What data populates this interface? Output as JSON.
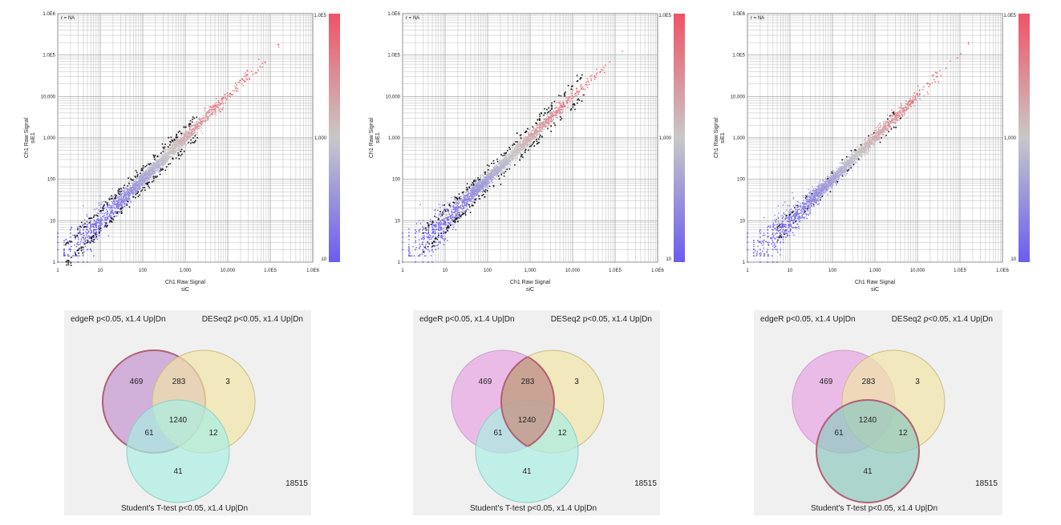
{
  "chart_data": [
    {
      "type": "scatter",
      "corr_label": "r = NA",
      "xlabel": "Ch1 Raw Signal",
      "xsub": "siC",
      "ylabel": "Ch1 Raw Signal",
      "ysub": "siE1",
      "scale": "log",
      "xlim": [
        1,
        1000000
      ],
      "ylim": [
        1,
        1000000
      ],
      "x_ticks": [
        "1",
        "10",
        "100",
        "1,000",
        "10,000",
        "1.0E5",
        "1.0E6"
      ],
      "y_ticks": [
        "1",
        "10",
        "100",
        "1,000",
        "10,000",
        "1.0E5",
        "1.0E6"
      ],
      "colorbar": {
        "labels": [
          "1.0E5",
          "1,000",
          "10"
        ],
        "low_color": "#6b5cf0",
        "mid_color": "#c8c8c8",
        "high_color": "#ef5366"
      },
      "highlight_color": "#111111",
      "highlight_side": "both",
      "highlight_range": [
        1.5,
        2000
      ],
      "grid": true
    },
    {
      "type": "scatter",
      "corr_label": "r = NA",
      "xlabel": "Ch1 Raw Signal",
      "xsub": "siC",
      "ylabel": "Ch1 Raw Signal",
      "ysub": "siE1",
      "scale": "log",
      "xlim": [
        1,
        1000000
      ],
      "ylim": [
        1,
        1000000
      ],
      "x_ticks": [
        "1",
        "10",
        "100",
        "1,000",
        "10,000",
        "1.0E5",
        "1.0E6"
      ],
      "y_ticks": [
        "1",
        "10",
        "100",
        "1,000",
        "10,000",
        "1.0E5",
        "1.0E6"
      ],
      "colorbar": {
        "labels": [
          "1.0E5",
          "1,000",
          "10"
        ],
        "low_color": "#6b5cf0",
        "mid_color": "#c8c8c8",
        "high_color": "#ef5366"
      },
      "highlight_color": "#111111",
      "highlight_side": "both",
      "highlight_range": [
        3,
        20000
      ],
      "grid": true
    },
    {
      "type": "scatter",
      "corr_label": "r = NA",
      "xlabel": "Ch1 Raw Signal",
      "xsub": "siC",
      "ylabel": "Ch1 Raw Signal",
      "ysub": "siE1",
      "scale": "log",
      "xlim": [
        1,
        1000000
      ],
      "ylim": [
        1,
        1000000
      ],
      "x_ticks": [
        "1",
        "10",
        "100",
        "1,000",
        "10,000",
        "1.0E5",
        "1.0E6"
      ],
      "y_ticks": [
        "1",
        "10",
        "100",
        "1,000",
        "10,000",
        "1.0E5",
        "1.0E6"
      ],
      "colorbar": {
        "labels": [
          "1.0E5",
          "1,000",
          "10"
        ],
        "low_color": "#6b5cf0",
        "mid_color": "#c8c8c8",
        "high_color": "#ef5366"
      },
      "highlight_color": "#111111",
      "highlight_side": "few",
      "highlight_range": [
        5,
        5000
      ],
      "grid": true
    },
    {
      "type": "venn",
      "sets": [
        "edgeR p<0.05, x1.4 Up|Dn",
        "DESeq2 p<0.05, x1.4 Up|Dn",
        "Student's T-test p<0.05, x1.4 Up|Dn"
      ],
      "highlighted_set": 0,
      "regions": {
        "A": "469",
        "AB": "283",
        "B": "3",
        "AC": "61",
        "ABC": "1240",
        "BC": "12",
        "C": "41",
        "outside": "18515"
      }
    },
    {
      "type": "venn",
      "sets": [
        "edgeR p<0.05, x1.4 Up|Dn",
        "DESeq2 p<0.05, x1.4 Up|Dn",
        "Student's T-test p<0.05, x1.4 Up|Dn"
      ],
      "highlighted_region": "AB",
      "regions": {
        "A": "469",
        "AB": "283",
        "B": "3",
        "AC": "61",
        "ABC": "1240",
        "BC": "12",
        "C": "41",
        "outside": "18515"
      }
    },
    {
      "type": "venn",
      "sets": [
        "edgeR p<0.05, x1.4 Up|Dn",
        "DESeq2 p<0.05, x1.4 Up|Dn",
        "Student's T-test p<0.05, x1.4 Up|Dn"
      ],
      "highlighted_set": 2,
      "regions": {
        "A": "469",
        "AB": "283",
        "B": "3",
        "AC": "61",
        "ABC": "1240",
        "BC": "12",
        "C": "41",
        "outside": "18515"
      }
    }
  ]
}
